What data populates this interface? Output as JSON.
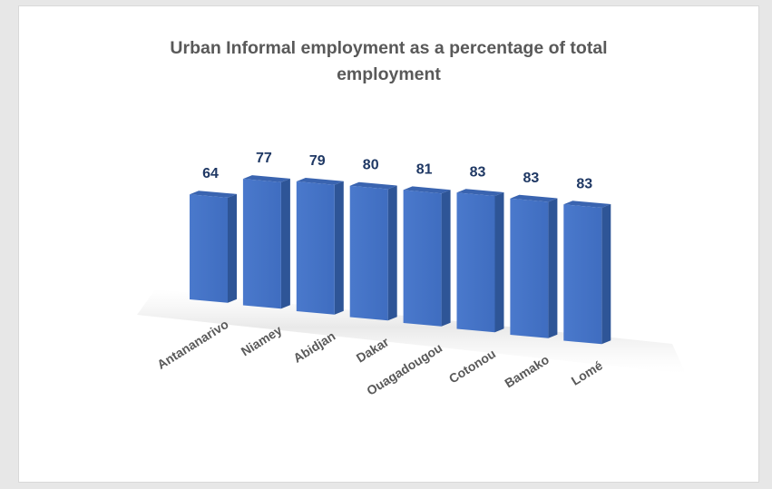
{
  "chart_data": {
    "type": "bar",
    "title_lines": [
      "Urban Informal employment as a percentage of total",
      "employment"
    ],
    "categories": [
      "Antananarivo",
      "Niamey",
      "Abidjan",
      "Dakar",
      "Ouagadougou",
      "Cotonou",
      "Bamako",
      "Lomé"
    ],
    "values": [
      64,
      77,
      79,
      80,
      81,
      83,
      83,
      83
    ],
    "data_labels": [
      "64",
      "77",
      "79",
      "80",
      "81",
      "83",
      "83",
      "83"
    ],
    "style": "3d-column",
    "grid": false,
    "legend": "none",
    "colors": {
      "bar_front": "#4472c4",
      "bar_side": "#2e5597",
      "bar_top": "#3a64b0",
      "data_label": "#1f3864",
      "axis_label": "#595959",
      "title": "#595959"
    }
  }
}
